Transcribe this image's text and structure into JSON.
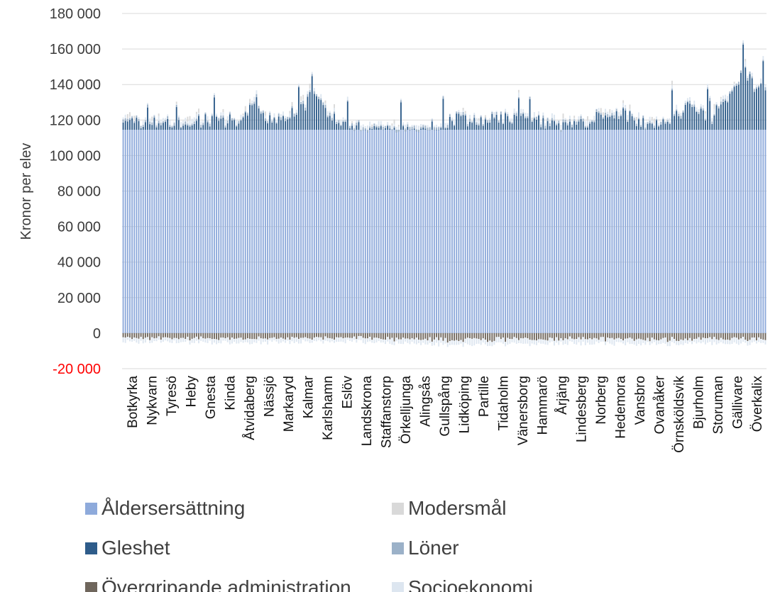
{
  "chart_data": {
    "type": "bar",
    "stacked": true,
    "ylabel": "Kronor per elev",
    "ylim": [
      -20000,
      180000
    ],
    "yticks": [
      {
        "value": -20000,
        "label": "-20 000",
        "color": "#ff0000"
      },
      {
        "value": 0,
        "label": "0",
        "color": "#3b3b3b"
      },
      {
        "value": 20000,
        "label": "20 000",
        "color": "#3b3b3b"
      },
      {
        "value": 40000,
        "label": "40 000",
        "color": "#3b3b3b"
      },
      {
        "value": 60000,
        "label": "60 000",
        "color": "#3b3b3b"
      },
      {
        "value": 80000,
        "label": "80 000",
        "color": "#3b3b3b"
      },
      {
        "value": 100000,
        "label": "100 000",
        "color": "#3b3b3b"
      },
      {
        "value": 120000,
        "label": "120 000",
        "color": "#3b3b3b"
      },
      {
        "value": 140000,
        "label": "140 000",
        "color": "#3b3b3b"
      },
      {
        "value": 160000,
        "label": "160 000",
        "color": "#3b3b3b"
      },
      {
        "value": 180000,
        "label": "180 000",
        "color": "#3b3b3b"
      }
    ],
    "grid": true,
    "legend_position": "bottom",
    "bar_count": 290,
    "base_value": 114500,
    "visible_categories": [
      "Botkyrka",
      "Nykvarn",
      "Tyresö",
      "Heby",
      "Gnesta",
      "Kinda",
      "Åtvidaberg",
      "Nässjö",
      "Markaryd",
      "Kalmar",
      "Karlshamn",
      "Eslöv",
      "Landskrona",
      "Staffanstorp",
      "Örkelljunga",
      "Alingsås",
      "Gullspång",
      "Lidköping",
      "Partille",
      "Tidaholm",
      "Vänersborg",
      "Hammarö",
      "Årjäng",
      "Lindesberg",
      "Norberg",
      "Hedemora",
      "Vansbro",
      "Ovanåker",
      "Örnsköldsvik",
      "Bjurholm",
      "Storuman",
      "Gällivare",
      "Överkalix"
    ],
    "series": [
      {
        "name": "Åldersersättning",
        "color": "#8eaadb"
      },
      {
        "name": "Modersmål",
        "color": "#d9d9d9"
      },
      {
        "name": "Gleshet",
        "color": "#2e5c8a"
      },
      {
        "name": "Löner",
        "color": "#9bb1c8"
      },
      {
        "name": "Övergripande administration",
        "color": "#6f665c"
      },
      {
        "name": "Socioekonomi",
        "color": "#dde6f0"
      }
    ],
    "top_profile": [
      [
        0,
        120000
      ],
      [
        20,
        119500
      ],
      [
        35,
        121000
      ],
      [
        45,
        122000
      ],
      [
        55,
        123000
      ],
      [
        60,
        136000
      ],
      [
        62,
        122000
      ],
      [
        75,
        124000
      ],
      [
        82,
        131000
      ],
      [
        85,
        136000
      ],
      [
        95,
        124000
      ],
      [
        105,
        117000
      ],
      [
        125,
        115000
      ],
      [
        140,
        117000
      ],
      [
        150,
        122000
      ],
      [
        165,
        123000
      ],
      [
        185,
        122500
      ],
      [
        200,
        119000
      ],
      [
        215,
        124000
      ],
      [
        225,
        127000
      ],
      [
        235,
        118000
      ],
      [
        245,
        122000
      ],
      [
        255,
        130000
      ],
      [
        265,
        124000
      ],
      [
        275,
        140000
      ],
      [
        280,
        150000
      ],
      [
        285,
        138000
      ],
      [
        289,
        142000
      ]
    ],
    "negative_profile": [
      [
        0,
        -3500
      ],
      [
        50,
        -4200
      ],
      [
        100,
        -3500
      ],
      [
        150,
        -5500
      ],
      [
        200,
        -4500
      ],
      [
        250,
        -5000
      ],
      [
        289,
        -4500
      ]
    ]
  },
  "colors": {
    "grid": "#d9d9d9",
    "axis_text": "#3b3b3b",
    "negative_tick": "#ff0000"
  }
}
